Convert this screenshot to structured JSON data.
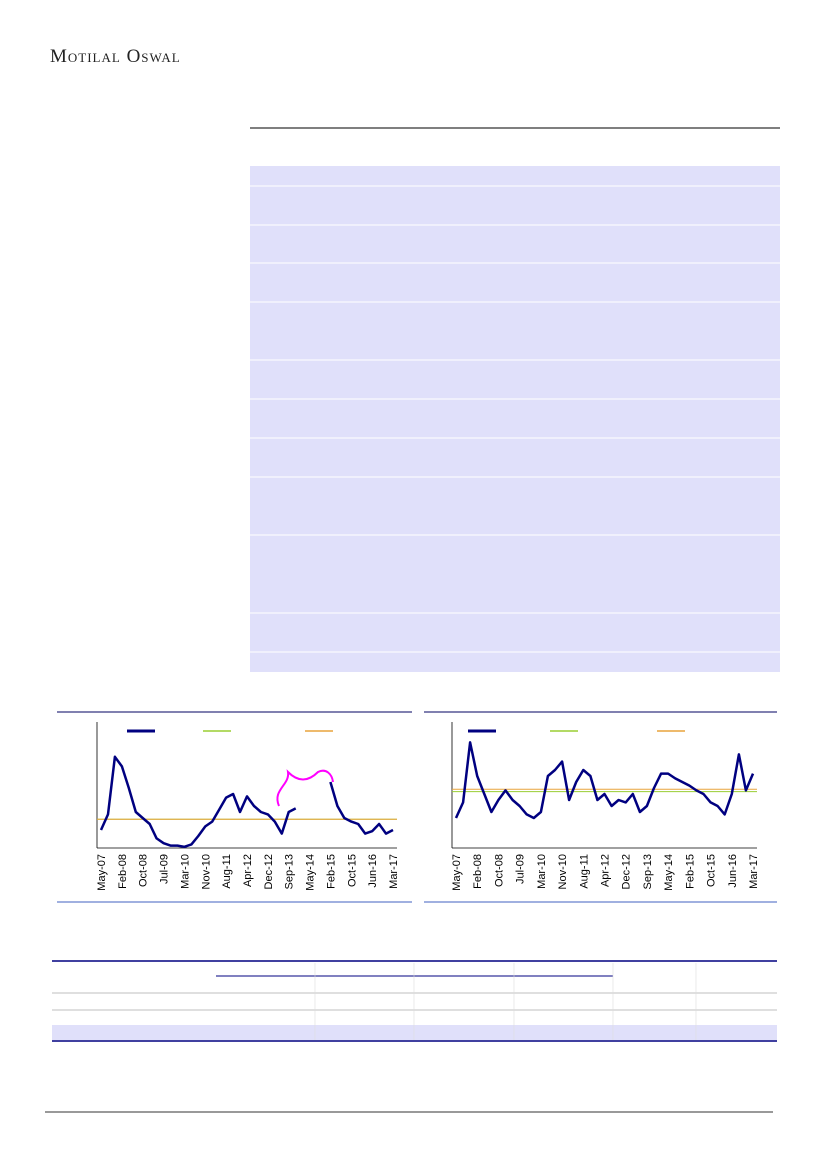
{
  "header": {
    "brand": "Motilal Oswal"
  },
  "chart_data": [
    {
      "type": "line",
      "categories": [
        "May-07",
        null,
        null,
        "Feb-08",
        null,
        null,
        "Oct-08",
        null,
        null,
        "Jul-09",
        null,
        null,
        "Mar-10",
        null,
        null,
        "Nov-10",
        null,
        null,
        "Aug-11",
        null,
        null,
        "Apr-12",
        null,
        null,
        "Dec-12",
        null,
        null,
        "Sep-13",
        null,
        null,
        "May-14",
        null,
        null,
        "Feb-15",
        null,
        null,
        "Oct-15",
        null,
        null,
        "Jun-16",
        null,
        null,
        "Mar-17"
      ],
      "series": [
        {
          "color": "#000080",
          "values": [
            15,
            28,
            76,
            68,
            50,
            30,
            25,
            20,
            8,
            4,
            2,
            2,
            1,
            3,
            10,
            18,
            22,
            32,
            42,
            45,
            30,
            43,
            35,
            30,
            28,
            22,
            12,
            30,
            33,
            null,
            null,
            null,
            null,
            55,
            35,
            25,
            22,
            20,
            12,
            14,
            20,
            12,
            15
          ]
        }
      ],
      "reference_lines": [
        {
          "color": "#9acd32",
          "value": 24
        },
        {
          "color": "#e8a33c",
          "value": 24
        }
      ],
      "ylim": [
        0,
        100
      ]
    },
    {
      "type": "line",
      "categories": [
        "May-07",
        null,
        null,
        "Feb-08",
        null,
        null,
        "Oct-08",
        null,
        null,
        "Jul-09",
        null,
        null,
        "Mar-10",
        null,
        null,
        "Nov-10",
        null,
        null,
        "Aug-11",
        null,
        null,
        "Apr-12",
        null,
        null,
        "Dec-12",
        null,
        null,
        "Sep-13",
        null,
        null,
        "May-14",
        null,
        null,
        "Feb-15",
        null,
        null,
        "Oct-15",
        null,
        null,
        "Jun-16",
        null,
        null,
        "Mar-17"
      ],
      "series": [
        {
          "color": "#000080",
          "values": [
            25,
            38,
            88,
            60,
            45,
            30,
            40,
            48,
            40,
            35,
            28,
            25,
            30,
            60,
            65,
            72,
            40,
            55,
            65,
            60,
            40,
            45,
            35,
            40,
            38,
            45,
            30,
            35,
            50,
            62,
            62,
            58,
            55,
            52,
            48,
            45,
            38,
            35,
            28,
            45,
            78,
            48,
            62
          ]
        }
      ],
      "reference_lines": [
        {
          "color": "#9acd32",
          "value": 47
        },
        {
          "color": "#e8a33c",
          "value": 49
        }
      ],
      "ylim": [
        0,
        100
      ]
    }
  ]
}
